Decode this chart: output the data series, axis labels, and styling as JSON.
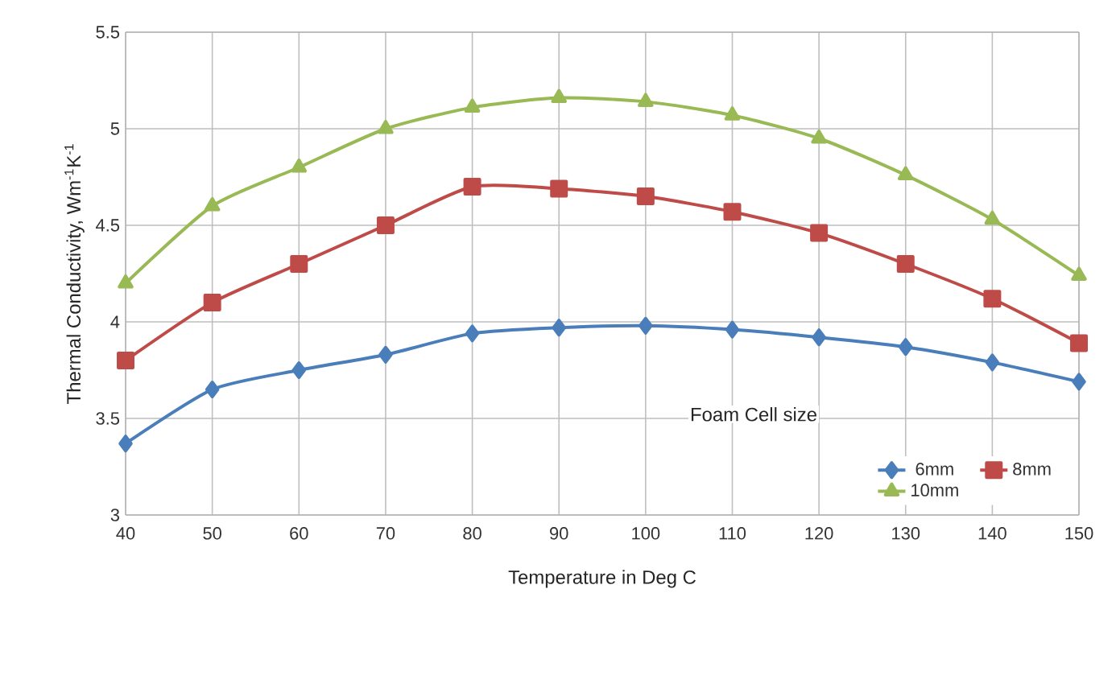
{
  "chart_data": {
    "type": "line",
    "xlabel": "Temperature in Deg C",
    "ylabel": "Thermal Conductivity, Wm$^{-1}$K$^{-1}$",
    "legend_title": "Foam Cell size",
    "x": [
      40,
      50,
      60,
      70,
      80,
      90,
      100,
      110,
      120,
      130,
      140,
      150
    ],
    "series": [
      {
        "name": "6mm",
        "color": "#4a7ebb",
        "marker": "diamond",
        "values": [
          3.37,
          3.65,
          3.75,
          3.83,
          3.94,
          3.97,
          3.98,
          3.96,
          3.92,
          3.87,
          3.79,
          3.69
        ]
      },
      {
        "name": "8mm",
        "color": "#be4b48",
        "marker": "square",
        "values": [
          3.8,
          4.1,
          4.3,
          4.5,
          4.7,
          4.69,
          4.65,
          4.57,
          4.46,
          4.3,
          4.12,
          3.89
        ]
      },
      {
        "name": "10mm",
        "color": "#98b954",
        "marker": "triangle",
        "values": [
          4.2,
          4.6,
          4.8,
          5.0,
          5.11,
          5.16,
          5.14,
          5.07,
          4.95,
          4.76,
          4.53,
          4.24
        ]
      }
    ],
    "xlim": [
      40,
      150
    ],
    "xticks": [
      40,
      50,
      60,
      70,
      80,
      90,
      100,
      110,
      120,
      130,
      140,
      150
    ],
    "ylim": [
      3,
      5.5
    ],
    "yticks": [
      3,
      3.5,
      4,
      4.5,
      5,
      5.5
    ],
    "grid": true,
    "legend": "bottom right",
    "line_style": "solid"
  }
}
